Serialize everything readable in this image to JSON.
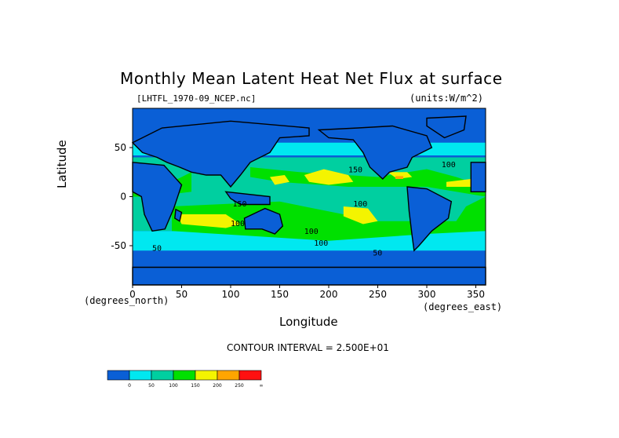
{
  "chart_data": {
    "type": "heatmap",
    "title": "Monthly Mean Latent Heat Net Flux at surface",
    "subtitle_left": "[LHTFL_1970-09_NCEP.nc]",
    "subtitle_right": "(units:W/m^2)",
    "xlabel": "Longitude",
    "ylabel": "Latitude",
    "x_units": "(degrees_east)",
    "y_units": "(degrees_north)",
    "xlim": [
      0,
      360
    ],
    "ylim": [
      -90,
      90
    ],
    "x_ticks": [
      0,
      50,
      100,
      150,
      200,
      250,
      300,
      350
    ],
    "y_ticks": [
      -50,
      0,
      50
    ],
    "contour_interval": "CONTOUR INTERVAL = 2.500E+01",
    "colorbar": {
      "boundaries": [
        "0",
        "50",
        "100",
        "150",
        "200",
        "250",
        "∞"
      ],
      "colors": [
        "#0a5fd6",
        "#00e8f0",
        "#00cfa0",
        "#00e000",
        "#f4f400",
        "#ffa500",
        "#ff1010"
      ]
    },
    "contour_labels": [
      "100",
      "100",
      "150",
      "100",
      "150",
      "100",
      "100",
      "50",
      "50"
    ]
  }
}
